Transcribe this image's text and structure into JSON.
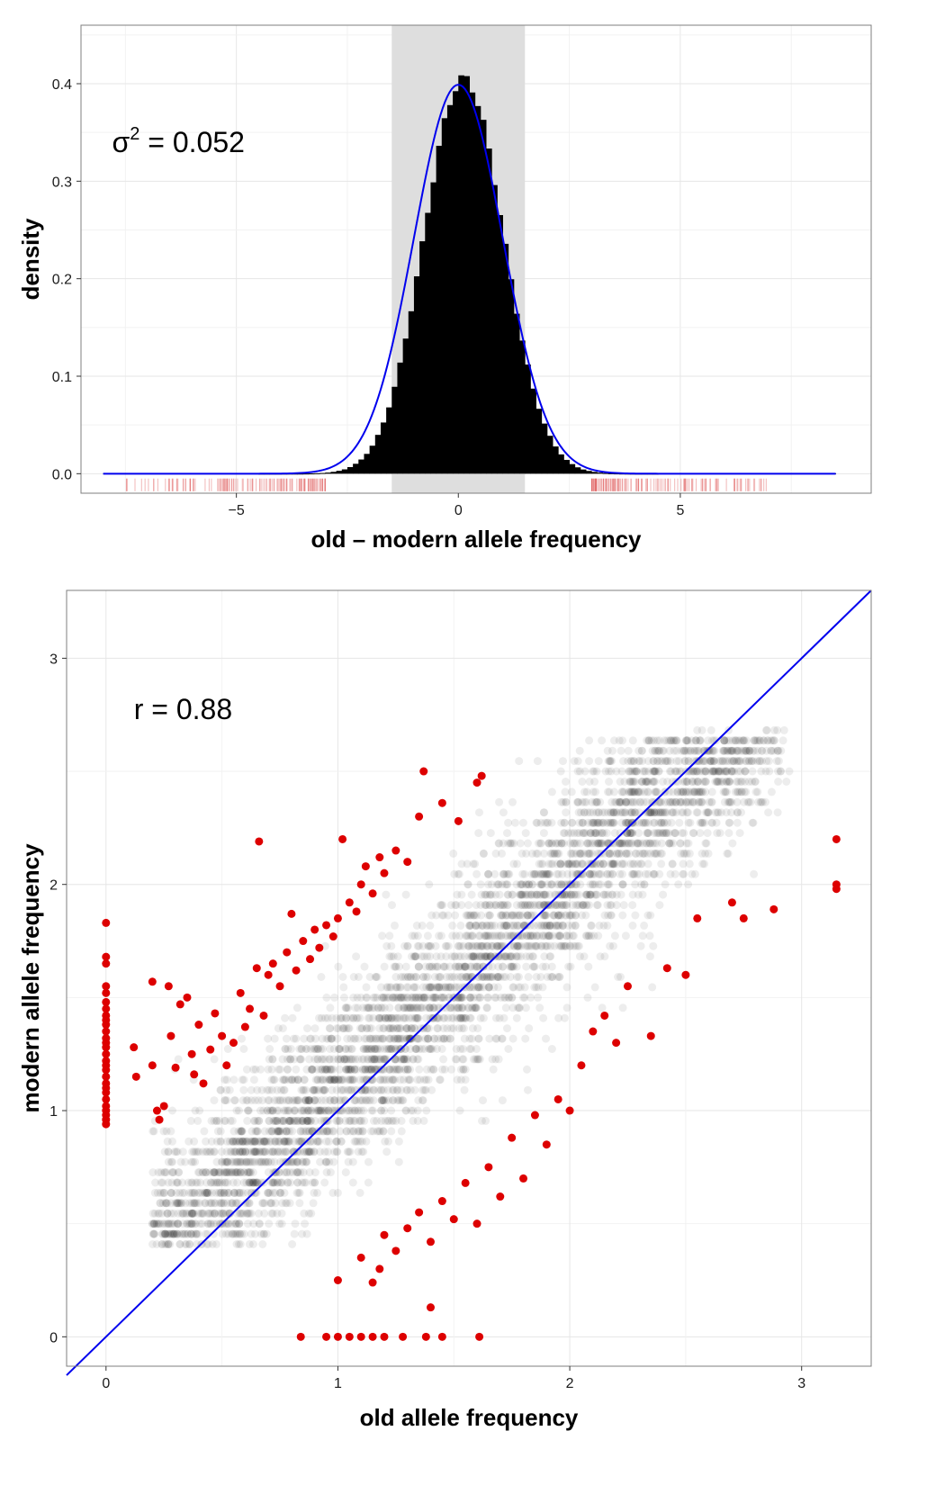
{
  "chart_data": [
    {
      "type": "histogram",
      "xlabel": "old – modern allele frequency",
      "ylabel": "density",
      "annotation": {
        "symbol": "σ",
        "exponent": "2",
        "text": " = 0.052"
      },
      "xlim": [
        -8.5,
        9.3
      ],
      "ylim": [
        -0.02,
        0.46
      ],
      "x_ticks": [
        -5,
        0,
        5
      ],
      "x_tick_labels": [
        "−5",
        "0",
        "5"
      ],
      "y_ticks": [
        0.0,
        0.1,
        0.2,
        0.3,
        0.4
      ],
      "y_tick_labels": [
        "0.0",
        "0.1",
        "0.2",
        "0.3",
        "0.4"
      ],
      "grid": true,
      "shaded_band": [
        -1.5,
        1.5
      ],
      "bin_width": 0.125,
      "bin_range": [
        -8,
        8.5
      ],
      "normal_curve": {
        "mean": 0,
        "sd": 1,
        "color": "#0000ee"
      },
      "histogram_peak_density": 0.4,
      "rug_ranges": [
        [
          -7.5,
          -3.0
        ],
        [
          3.0,
          7.0
        ]
      ],
      "colors": {
        "bars": "#000000",
        "band": "#dedede",
        "curve": "#0000ee",
        "rug": "#e06060"
      }
    },
    {
      "type": "scatter",
      "xlabel": "old allele frequency",
      "ylabel": "modern allele frequency",
      "annotation": "r = 0.88",
      "xlim": [
        -0.17,
        3.3
      ],
      "ylim": [
        -0.13,
        3.3
      ],
      "x_ticks": [
        0,
        1,
        2,
        3
      ],
      "x_tick_labels": [
        "0",
        "1",
        "2",
        "3"
      ],
      "y_ticks": [
        0,
        1,
        2,
        3
      ],
      "y_tick_labels": [
        "0",
        "1",
        "2",
        "3"
      ],
      "grid": true,
      "identity_line": {
        "slope": 1,
        "intercept": 0,
        "color": "#0000ee"
      },
      "correlation": 0.88,
      "bulk_points": "about 4000 semi-transparent black points along the diagonal",
      "outliers": [
        [
          0,
          1.83
        ],
        [
          0,
          1.68
        ],
        [
          0,
          1.65
        ],
        [
          0,
          1.55
        ],
        [
          0,
          1.52
        ],
        [
          0,
          1.48
        ],
        [
          0,
          1.45
        ],
        [
          0,
          1.42
        ],
        [
          0,
          1.4
        ],
        [
          0,
          1.38
        ],
        [
          0,
          1.35
        ],
        [
          0,
          1.32
        ],
        [
          0,
          1.3
        ],
        [
          0,
          1.28
        ],
        [
          0,
          1.25
        ],
        [
          0,
          1.22
        ],
        [
          0,
          1.2
        ],
        [
          0,
          1.18
        ],
        [
          0,
          1.15
        ],
        [
          0,
          1.12
        ],
        [
          0,
          1.1
        ],
        [
          0,
          1.08
        ],
        [
          0,
          1.05
        ],
        [
          0,
          1.02
        ],
        [
          0,
          1.0
        ],
        [
          0,
          0.98
        ],
        [
          0,
          0.96
        ],
        [
          0,
          0.94
        ],
        [
          0.12,
          1.28
        ],
        [
          0.13,
          1.15
        ],
        [
          0.2,
          1.57
        ],
        [
          0.2,
          1.2
        ],
        [
          0.22,
          1.0
        ],
        [
          0.23,
          0.96
        ],
        [
          0.25,
          1.02
        ],
        [
          0.27,
          1.55
        ],
        [
          0.28,
          1.33
        ],
        [
          0.3,
          1.19
        ],
        [
          0.32,
          1.47
        ],
        [
          0.35,
          1.5
        ],
        [
          0.37,
          1.25
        ],
        [
          0.38,
          1.16
        ],
        [
          0.4,
          1.38
        ],
        [
          0.42,
          1.12
        ],
        [
          0.45,
          1.27
        ],
        [
          0.47,
          1.43
        ],
        [
          0.5,
          1.33
        ],
        [
          0.52,
          1.2
        ],
        [
          0.55,
          1.3
        ],
        [
          0.58,
          1.52
        ],
        [
          0.6,
          1.37
        ],
        [
          0.62,
          1.45
        ],
        [
          0.65,
          1.63
        ],
        [
          0.66,
          2.19
        ],
        [
          0.68,
          1.42
        ],
        [
          0.7,
          1.6
        ],
        [
          0.72,
          1.65
        ],
        [
          0.75,
          1.55
        ],
        [
          0.78,
          1.7
        ],
        [
          0.8,
          1.87
        ],
        [
          0.82,
          1.62
        ],
        [
          0.85,
          1.75
        ],
        [
          0.88,
          1.67
        ],
        [
          0.9,
          1.8
        ],
        [
          0.92,
          1.72
        ],
        [
          0.95,
          1.82
        ],
        [
          0.98,
          1.77
        ],
        [
          1.0,
          1.85
        ],
        [
          1.02,
          2.2
        ],
        [
          1.05,
          1.92
        ],
        [
          1.08,
          1.88
        ],
        [
          1.1,
          2.0
        ],
        [
          1.12,
          2.08
        ],
        [
          1.15,
          1.96
        ],
        [
          1.18,
          2.12
        ],
        [
          1.2,
          2.05
        ],
        [
          1.25,
          2.15
        ],
        [
          1.3,
          2.1
        ],
        [
          1.35,
          2.3
        ],
        [
          1.37,
          2.5
        ],
        [
          1.45,
          2.36
        ],
        [
          1.52,
          2.28
        ],
        [
          1.6,
          2.45
        ],
        [
          1.62,
          2.48
        ],
        [
          0.84,
          0.0
        ],
        [
          0.95,
          0.0
        ],
        [
          1.0,
          0.0
        ],
        [
          1.05,
          0.0
        ],
        [
          1.1,
          0.0
        ],
        [
          1.15,
          0.0
        ],
        [
          1.2,
          0.0
        ],
        [
          1.28,
          0.0
        ],
        [
          1.38,
          0.0
        ],
        [
          1.45,
          0.0
        ],
        [
          1.61,
          0.0
        ],
        [
          1.4,
          0.13
        ],
        [
          1.0,
          0.25
        ],
        [
          1.1,
          0.35
        ],
        [
          1.15,
          0.24
        ],
        [
          1.18,
          0.3
        ],
        [
          1.2,
          0.45
        ],
        [
          1.25,
          0.38
        ],
        [
          1.3,
          0.48
        ],
        [
          1.35,
          0.55
        ],
        [
          1.4,
          0.42
        ],
        [
          1.45,
          0.6
        ],
        [
          1.5,
          0.52
        ],
        [
          1.55,
          0.68
        ],
        [
          1.6,
          0.5
        ],
        [
          1.65,
          0.75
        ],
        [
          1.7,
          0.62
        ],
        [
          1.75,
          0.88
        ],
        [
          1.8,
          0.7
        ],
        [
          1.85,
          0.98
        ],
        [
          1.9,
          0.85
        ],
        [
          1.95,
          1.05
        ],
        [
          2.0,
          1.0
        ],
        [
          2.05,
          1.2
        ],
        [
          2.1,
          1.35
        ],
        [
          2.15,
          1.42
        ],
        [
          2.2,
          1.3
        ],
        [
          2.25,
          1.55
        ],
        [
          2.35,
          1.33
        ],
        [
          2.42,
          1.63
        ],
        [
          2.5,
          1.6
        ],
        [
          2.55,
          1.85
        ],
        [
          2.7,
          1.92
        ],
        [
          2.75,
          1.85
        ],
        [
          2.88,
          1.89
        ],
        [
          3.15,
          2.2
        ],
        [
          3.15,
          2.0
        ],
        [
          3.15,
          1.98
        ]
      ],
      "colors": {
        "points": "#000000",
        "outliers": "#dd0000",
        "line": "#0000ee"
      }
    }
  ]
}
